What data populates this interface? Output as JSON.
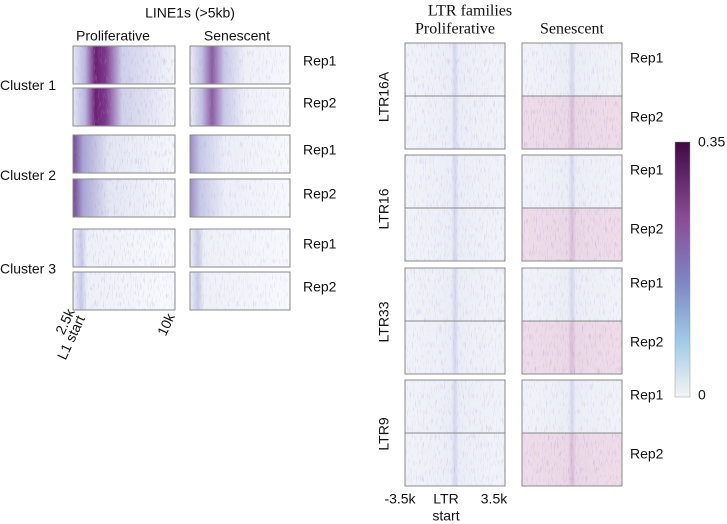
{
  "left": {
    "title": "LINE1s (>5kb)",
    "columns": [
      "Proliferative",
      "Senescent"
    ],
    "clusters": [
      "Cluster 1",
      "Cluster 2",
      "Cluster 3"
    ],
    "reps": [
      "Rep1",
      "Rep2"
    ],
    "x_labels": [
      "2.5k",
      "L1 start",
      "10k"
    ]
  },
  "right": {
    "title": "LTR families",
    "columns": [
      "Proliferative",
      "Senescent"
    ],
    "families": [
      "LTR16A",
      "LTR16",
      "LTR33",
      "LTR9"
    ],
    "reps": [
      "Rep1",
      "Rep2"
    ],
    "x_labels": [
      "-3.5k",
      "LTR",
      "start",
      "3.5k"
    ]
  },
  "colorbar": {
    "max": "0.35",
    "min": "0"
  }
}
